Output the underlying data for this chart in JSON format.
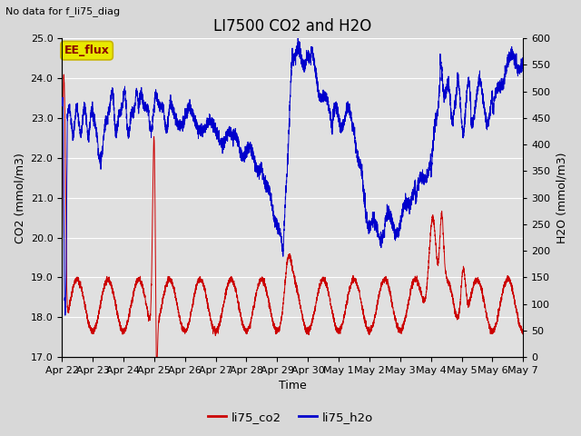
{
  "title": "LI7500 CO2 and H2O",
  "top_left_text": "No data for f_li75_diag",
  "box_label": "EE_flux",
  "xlabel": "Time",
  "ylabel_left": "CO2 (mmol/m3)",
  "ylabel_right": "H2O (mmol/m3)",
  "ylim_left": [
    17.0,
    25.0
  ],
  "ylim_right": [
    0,
    600
  ],
  "xtick_labels": [
    "Apr 22",
    "Apr 23",
    "Apr 24",
    "Apr 25",
    "Apr 26",
    "Apr 27",
    "Apr 28",
    "Apr 29",
    "Apr 30",
    "May 1",
    "May 2",
    "May 3",
    "May 4",
    "May 5",
    "May 6",
    "May 7"
  ],
  "legend_labels": [
    "li75_co2",
    "li75_h2o"
  ],
  "co2_color": "#cc0000",
  "h2o_color": "#0000cc",
  "background_color": "#e0e0e0",
  "fig_background": "#d8d8d8",
  "box_facecolor": "#e8e800",
  "box_edgecolor": "#c8b400",
  "grid_color": "#ffffff",
  "title_fontsize": 12,
  "label_fontsize": 9,
  "tick_fontsize": 8,
  "n_points": 5000
}
